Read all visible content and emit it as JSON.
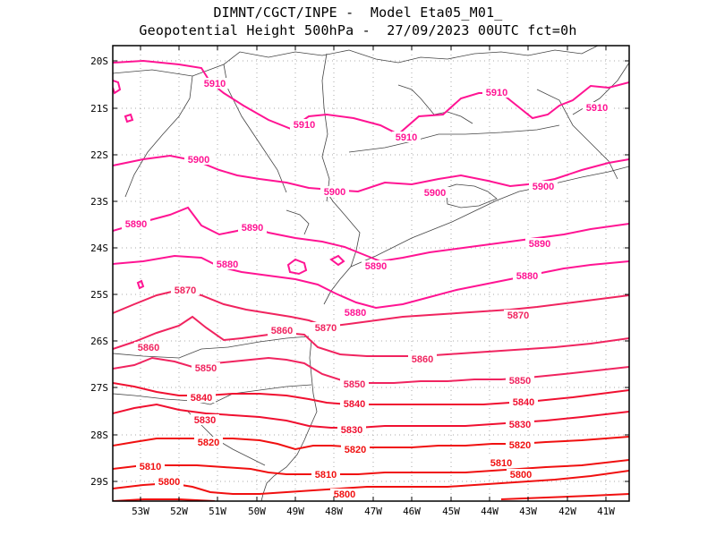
{
  "header": {
    "line1": "DIMNT/CGCT/INPE -  Model Eta05_M01_",
    "line2": "Geopotential Height 500hPa -  27/09/2023 00UTC fct=0h"
  },
  "axes": {
    "lon_labels": [
      "53W",
      "52W",
      "51W",
      "50W",
      "49W",
      "48W",
      "47W",
      "46W",
      "45W",
      "44W",
      "43W",
      "42W",
      "41W"
    ],
    "lat_labels": [
      "20S",
      "21S",
      "22S",
      "23S",
      "24S",
      "25S",
      "26S",
      "27S",
      "28S",
      "29S"
    ]
  },
  "colors": {
    "border": "#000000",
    "grid": "#aaaaaa",
    "coast": "#444444",
    "high": "#ff1493",
    "mid": "#f0245f",
    "low": "#f01010"
  },
  "contours": [
    {
      "value": 5910,
      "color": "#ff1493"
    },
    {
      "value": 5900,
      "color": "#ff1493"
    },
    {
      "value": 5890,
      "color": "#ff1493"
    },
    {
      "value": 5880,
      "color": "#ff1493"
    },
    {
      "value": 5870,
      "color": "#f0245f"
    },
    {
      "value": 5860,
      "color": "#f0245f"
    },
    {
      "value": 5850,
      "color": "#f0245f"
    },
    {
      "value": 5840,
      "color": "#f01030"
    },
    {
      "value": 5830,
      "color": "#f01030"
    },
    {
      "value": 5820,
      "color": "#f01010"
    },
    {
      "value": 5810,
      "color": "#f01010"
    },
    {
      "value": 5800,
      "color": "#f01010"
    }
  ],
  "contour_labels": [
    {
      "text": "5910",
      "color": "#ff1493"
    },
    {
      "text": "5910",
      "color": "#ff1493"
    },
    {
      "text": "5910",
      "color": "#ff1493"
    },
    {
      "text": "5910",
      "color": "#ff1493"
    },
    {
      "text": "5910",
      "color": "#ff1493"
    },
    {
      "text": "5900",
      "color": "#ff1493"
    },
    {
      "text": "5900",
      "color": "#ff1493"
    },
    {
      "text": "5900",
      "color": "#ff1493"
    },
    {
      "text": "5900",
      "color": "#ff1493"
    },
    {
      "text": "5890",
      "color": "#ff1493"
    },
    {
      "text": "5890",
      "color": "#ff1493"
    },
    {
      "text": "5890",
      "color": "#ff1493"
    },
    {
      "text": "5890",
      "color": "#ff1493"
    },
    {
      "text": "5880",
      "color": "#ff1493"
    },
    {
      "text": "5880",
      "color": "#ff1493"
    },
    {
      "text": "5880",
      "color": "#ff1493"
    },
    {
      "text": "5870",
      "color": "#f0245f"
    },
    {
      "text": "5870",
      "color": "#f0245f"
    },
    {
      "text": "5870",
      "color": "#f0245f"
    },
    {
      "text": "5860",
      "color": "#f0245f"
    },
    {
      "text": "5860",
      "color": "#f0245f"
    },
    {
      "text": "5860",
      "color": "#f0245f"
    },
    {
      "text": "5850",
      "color": "#f0245f"
    },
    {
      "text": "5850",
      "color": "#f0245f"
    },
    {
      "text": "5850",
      "color": "#f0245f"
    },
    {
      "text": "5840",
      "color": "#f01030"
    },
    {
      "text": "5840",
      "color": "#f01030"
    },
    {
      "text": "5840",
      "color": "#f01030"
    },
    {
      "text": "5830",
      "color": "#f01030"
    },
    {
      "text": "5830",
      "color": "#f01030"
    },
    {
      "text": "5830",
      "color": "#f01030"
    },
    {
      "text": "5820",
      "color": "#f01010"
    },
    {
      "text": "5820",
      "color": "#f01010"
    },
    {
      "text": "5820",
      "color": "#f01010"
    },
    {
      "text": "5810",
      "color": "#f01010"
    },
    {
      "text": "5810",
      "color": "#f01010"
    },
    {
      "text": "5810",
      "color": "#f01010"
    },
    {
      "text": "5800",
      "color": "#f01010"
    },
    {
      "text": "5800",
      "color": "#f01010"
    },
    {
      "text": "5800",
      "color": "#f01010"
    }
  ]
}
